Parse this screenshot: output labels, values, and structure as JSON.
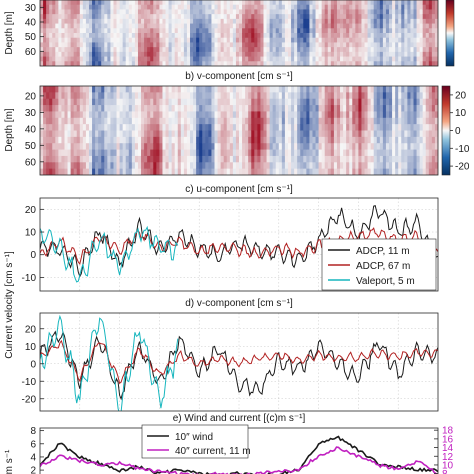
{
  "chart_data": [
    {
      "type": "heatmap",
      "panel": "a",
      "title": "",
      "ylabel": "Depth [m]",
      "y_ticks": [
        30,
        40,
        50,
        60
      ],
      "ylim": [
        25,
        70
      ],
      "colormap": "red-blue diverging",
      "colors": {
        "positive": "#a3172a",
        "zero": "#f7f7f7",
        "negative": "#1c3f8f"
      }
    },
    {
      "type": "heatmap",
      "panel": "b",
      "title": "b) v-component [cm s⁻¹]",
      "ylabel": "Depth [m]",
      "y_ticks": [
        20,
        30,
        40,
        50,
        60
      ],
      "ylim": [
        14,
        68
      ],
      "colorbar_ticks": [
        20,
        10,
        0,
        -10,
        -20
      ],
      "colorbar_range": [
        -25,
        25
      ],
      "colors": {
        "positive": "#a3172a",
        "zero": "#f7f7f7",
        "negative": "#1c3f8f"
      }
    },
    {
      "type": "line",
      "panel": "c",
      "title": "c) u-component [cm s⁻¹]",
      "ylabel": "",
      "y_ticks": [
        20,
        10,
        0,
        -10
      ],
      "ylim": [
        -16,
        25
      ],
      "grid": true,
      "legend_position": "bottom-right",
      "x": [
        0,
        0.05,
        0.1,
        0.15,
        0.2,
        0.25,
        0.3,
        0.35,
        0.4,
        0.45,
        0.5,
        0.55,
        0.6,
        0.65,
        0.7,
        0.75,
        0.8,
        0.85,
        0.9,
        0.95,
        1
      ],
      "series": [
        {
          "name": "ADCP, 11 m",
          "color": "#1a1a1a",
          "values": [
            4,
            2,
            -6,
            10,
            -4,
            12,
            2,
            8,
            3,
            0,
            5,
            2,
            1,
            -2,
            6,
            18,
            8,
            20,
            10,
            14,
            -4
          ]
        },
        {
          "name": "ADCP, 67 m",
          "color": "#b22222",
          "values": [
            0,
            6,
            -2,
            8,
            2,
            10,
            3,
            6,
            1,
            4,
            2,
            0,
            3,
            1,
            4,
            6,
            8,
            10,
            6,
            8,
            0
          ]
        },
        {
          "name": "Valeport, 5 m",
          "color": "#17b6be",
          "values": [
            10,
            3,
            -12,
            8,
            -6,
            11,
            4,
            2,
            null,
            null,
            null,
            null,
            null,
            null,
            null,
            null,
            null,
            null,
            null,
            null,
            null
          ]
        }
      ]
    },
    {
      "type": "line",
      "panel": "d",
      "title": "d) v-component [cm s⁻¹]",
      "ylabel": "Current velocity [cm s⁻¹]",
      "y_ticks": [
        20,
        10,
        0,
        -10,
        -20
      ],
      "ylim": [
        -27,
        29
      ],
      "grid": true,
      "x": [
        0,
        0.05,
        0.1,
        0.15,
        0.2,
        0.25,
        0.3,
        0.35,
        0.4,
        0.45,
        0.5,
        0.55,
        0.6,
        0.65,
        0.7,
        0.75,
        0.8,
        0.85,
        0.9,
        0.95,
        1
      ],
      "series": [
        {
          "name": "ADCP, 11 m",
          "color": "#1a1a1a",
          "values": [
            5,
            18,
            -10,
            15,
            -18,
            10,
            -12,
            14,
            -5,
            8,
            -12,
            -15,
            2,
            -4,
            10,
            0,
            -8,
            12,
            -6,
            8,
            5
          ]
        },
        {
          "name": "ADCP, 67 m",
          "color": "#b22222",
          "values": [
            3,
            12,
            -8,
            14,
            -10,
            8,
            -6,
            5,
            0,
            3,
            0,
            3,
            5,
            2,
            5,
            3,
            4,
            6,
            4,
            7,
            6
          ]
        },
        {
          "name": "Valeport, 5 m",
          "color": "#17b6be",
          "values": [
            0,
            22,
            -20,
            28,
            -25,
            20,
            -22,
            10,
            null,
            null,
            null,
            null,
            null,
            null,
            null,
            null,
            null,
            null,
            null,
            null,
            null
          ]
        }
      ]
    },
    {
      "type": "line",
      "panel": "e",
      "title": "e) Wind and current [(c)m s⁻¹]",
      "ylabel": "m s⁻¹",
      "y_ticks": [
        8,
        6,
        4,
        2
      ],
      "ylim": [
        0.8,
        8.4
      ],
      "y2_ticks": [
        18,
        16,
        14,
        12,
        10,
        8
      ],
      "y2lim": [
        7,
        18.5
      ],
      "y2_color": "#c020c0",
      "legend_position": "top-center",
      "x": [
        0,
        0.05,
        0.1,
        0.15,
        0.2,
        0.25,
        0.3,
        0.35,
        0.4,
        0.45,
        0.5,
        0.55,
        0.6,
        0.65,
        0.7,
        0.75,
        0.8,
        0.85,
        0.9,
        0.95,
        1
      ],
      "series": [
        {
          "name": "10″ wind",
          "color": "#1a1a1a",
          "axis": "left",
          "values": [
            3,
            6,
            4,
            3,
            2,
            2.5,
            1.5,
            2,
            1.5,
            1.2,
            1.5,
            1.2,
            1.5,
            2,
            6,
            7,
            5,
            3,
            2.5,
            2,
            2
          ]
        },
        {
          "name": "40″ current, 11 m",
          "color": "#c020c0",
          "axis": "right",
          "values": [
            10,
            12,
            11,
            10,
            10.5,
            9,
            8.5,
            8,
            7.5,
            8,
            7.5,
            8,
            8.5,
            9,
            12,
            14,
            12,
            10,
            9,
            11,
            8
          ]
        }
      ]
    }
  ]
}
